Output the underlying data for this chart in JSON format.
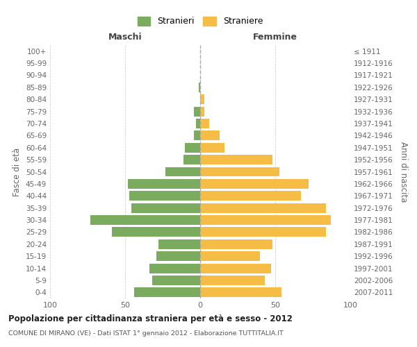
{
  "age_groups": [
    "100+",
    "95-99",
    "90-94",
    "85-89",
    "80-84",
    "75-79",
    "70-74",
    "65-69",
    "60-64",
    "55-59",
    "50-54",
    "45-49",
    "40-44",
    "35-39",
    "30-34",
    "25-29",
    "20-24",
    "15-19",
    "10-14",
    "5-9",
    "0-4"
  ],
  "birth_years": [
    "≤ 1911",
    "1912-1916",
    "1917-1921",
    "1922-1926",
    "1927-1931",
    "1932-1936",
    "1937-1941",
    "1942-1946",
    "1947-1951",
    "1952-1956",
    "1957-1961",
    "1962-1966",
    "1967-1971",
    "1972-1976",
    "1977-1981",
    "1982-1986",
    "1987-1991",
    "1992-1996",
    "1997-2001",
    "2002-2006",
    "2007-2011"
  ],
  "males": [
    0,
    0,
    0,
    1,
    0,
    4,
    3,
    4,
    10,
    11,
    23,
    48,
    47,
    46,
    73,
    59,
    28,
    29,
    34,
    32,
    44
  ],
  "females": [
    0,
    0,
    0,
    0,
    3,
    3,
    6,
    13,
    16,
    48,
    53,
    72,
    67,
    84,
    87,
    84,
    48,
    40,
    47,
    43,
    54
  ],
  "male_color": "#7aab5e",
  "female_color": "#f5bd45",
  "background_color": "#ffffff",
  "grid_color": "#cccccc",
  "title": "Popolazione per cittadinanza straniera per età e sesso - 2012",
  "subtitle": "COMUNE DI MIRANO (VE) - Dati ISTAT 1° gennaio 2012 - Elaborazione TUTTITALIA.IT",
  "xlabel_left": "Maschi",
  "xlabel_right": "Femmine",
  "ylabel_left": "Fasce di età",
  "ylabel_right": "Anni di nascita",
  "legend_male": "Stranieri",
  "legend_female": "Straniere",
  "xlim": 100
}
